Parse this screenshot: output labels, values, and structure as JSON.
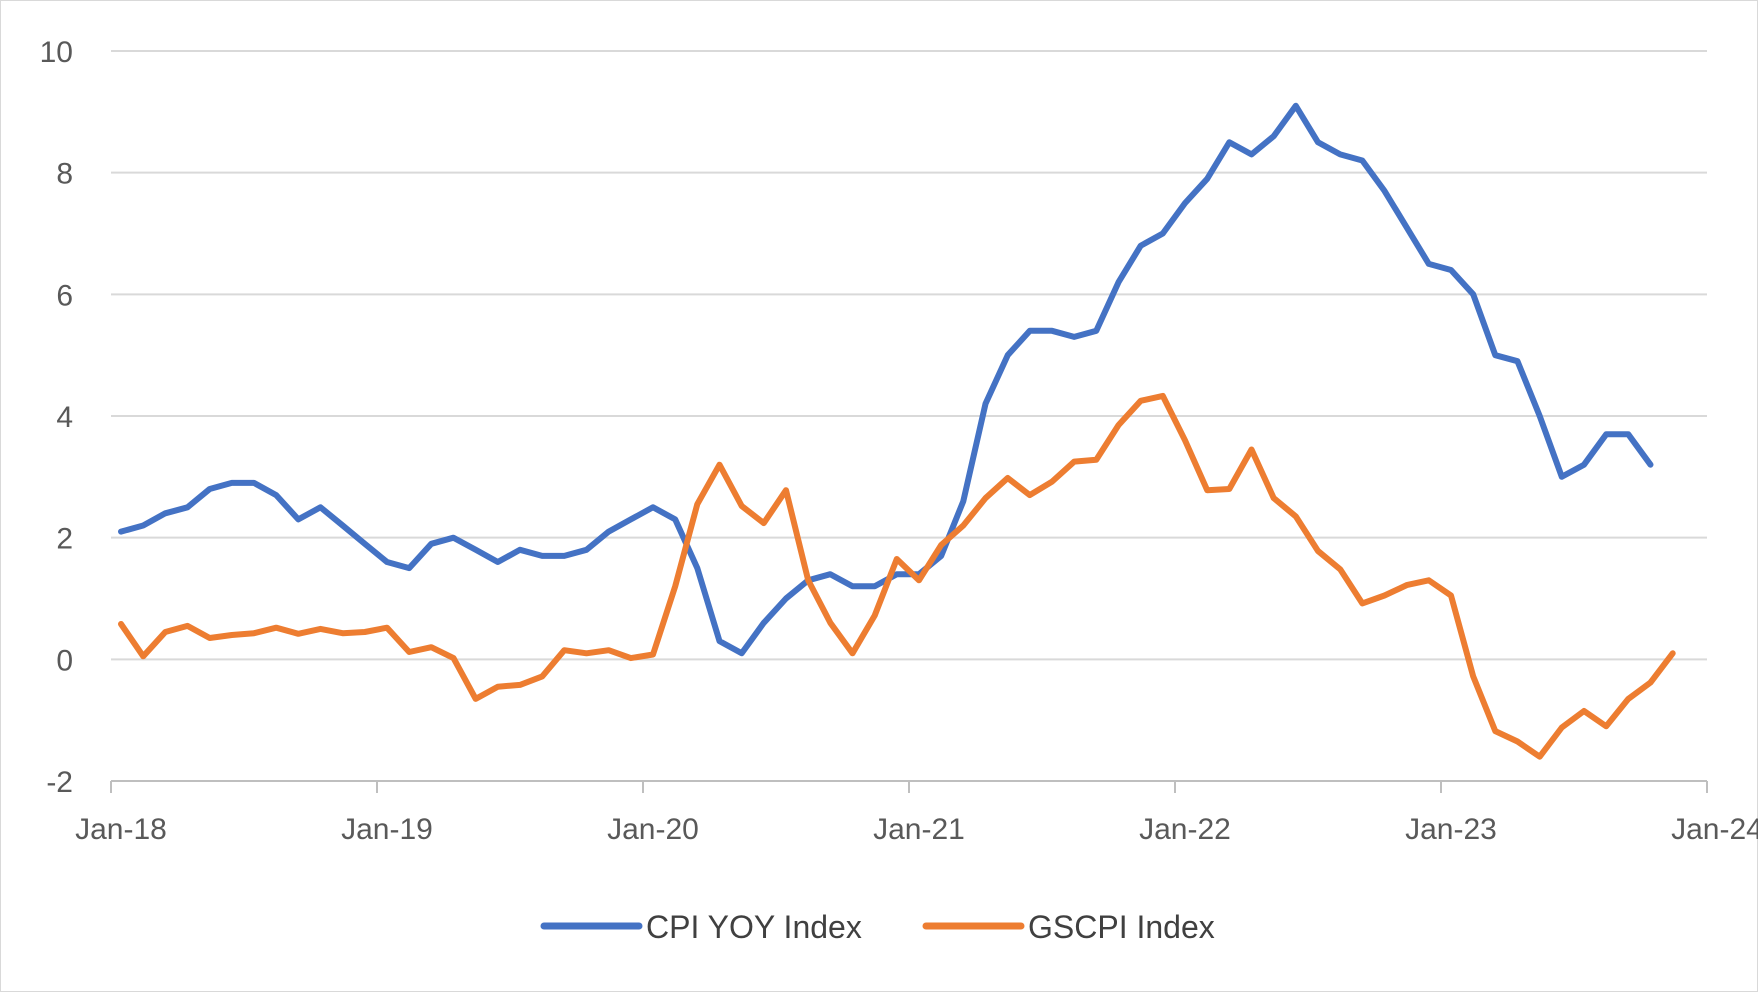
{
  "chart_data": {
    "type": "line",
    "title": "",
    "xlabel": "",
    "ylabel": "",
    "ylim": [
      -2,
      10
    ],
    "yticks": [
      -2,
      0,
      2,
      4,
      6,
      8,
      10
    ],
    "xtick_labels": [
      "Jan-18",
      "Jan-19",
      "Jan-20",
      "Jan-21",
      "Jan-22",
      "Jan-23",
      "Jan-24"
    ],
    "x_start": "Jan-18",
    "x_end": "Jan-24",
    "grid": "horizontal",
    "legend_position": "bottom",
    "series": [
      {
        "name": "CPI YOY Index",
        "color": "#4472C4",
        "values": [
          2.1,
          2.2,
          2.4,
          2.5,
          2.8,
          2.9,
          2.9,
          2.7,
          2.3,
          2.5,
          2.2,
          1.9,
          1.6,
          1.5,
          1.9,
          2.0,
          1.8,
          1.6,
          1.8,
          1.7,
          1.7,
          1.8,
          2.1,
          2.3,
          2.5,
          2.3,
          1.5,
          0.3,
          0.1,
          0.6,
          1.0,
          1.3,
          1.4,
          1.2,
          1.2,
          1.4,
          1.4,
          1.7,
          2.6,
          4.2,
          5.0,
          5.4,
          5.4,
          5.3,
          5.4,
          6.2,
          6.8,
          7.0,
          7.5,
          7.9,
          8.5,
          8.3,
          8.6,
          9.1,
          8.5,
          8.3,
          8.2,
          7.7,
          7.1,
          6.5,
          6.4,
          6.0,
          5.0,
          4.9,
          4.0,
          3.0,
          3.2,
          3.7,
          3.7,
          3.2
        ]
      },
      {
        "name": "GSCPI Index",
        "color": "#ED7D31",
        "values": [
          0.58,
          0.05,
          0.45,
          0.55,
          0.35,
          0.4,
          0.43,
          0.52,
          0.42,
          0.5,
          0.43,
          0.45,
          0.52,
          0.12,
          0.2,
          0.02,
          -0.65,
          -0.45,
          -0.42,
          -0.28,
          0.15,
          0.1,
          0.15,
          0.02,
          0.08,
          1.2,
          2.55,
          3.2,
          2.52,
          2.24,
          2.78,
          1.3,
          0.6,
          0.1,
          0.72,
          1.65,
          1.3,
          1.88,
          2.2,
          2.65,
          2.98,
          2.7,
          2.92,
          3.25,
          3.28,
          3.85,
          4.25,
          4.33,
          3.6,
          2.78,
          2.8,
          3.45,
          2.65,
          2.35,
          1.78,
          1.48,
          0.92,
          1.05,
          1.22,
          1.3,
          1.05,
          -0.28,
          -1.18,
          -1.35,
          -1.6,
          -1.12,
          -0.85,
          -1.1,
          -0.65,
          -0.38,
          0.1
        ]
      }
    ]
  }
}
